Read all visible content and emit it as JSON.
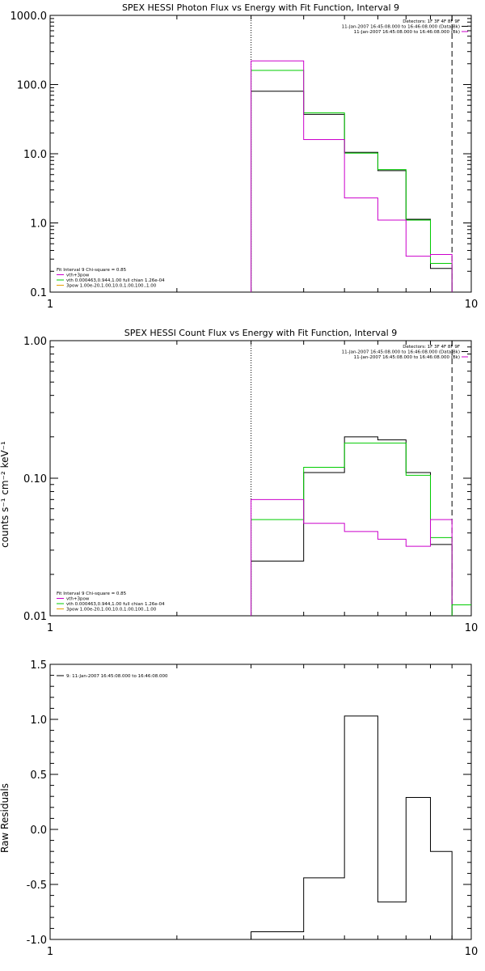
{
  "chart_data": [
    {
      "type": "line",
      "subtype": "histogram-step",
      "title": "SPEX HESSI Photon Flux vs Energy with Fit Function, Interval 9",
      "xlabel": "",
      "ylabel": "",
      "xscale": "log",
      "yscale": "log",
      "xlim": [
        1,
        10
      ],
      "ylim": [
        0.1,
        1000
      ],
      "xticks": [
        "1",
        "10"
      ],
      "yticks": [
        "1000.0",
        "100.0",
        "10.0",
        "1.0",
        "0.1"
      ],
      "ytick_values": [
        1000,
        100,
        10,
        1,
        0.1
      ],
      "vlines": [
        {
          "x": 3.0,
          "style": "dotted"
        },
        {
          "x": 9.0,
          "style": "dashed"
        }
      ],
      "bin_edges": [
        3.0,
        4.0,
        5.0,
        6.0,
        7.0,
        8.0,
        9.0
      ],
      "series": [
        {
          "color": "#000000",
          "values": [
            80,
            37,
            10.5,
            5.7,
            1.13,
            0.22
          ]
        },
        {
          "color": "#00cc00",
          "values": [
            160,
            39,
            10.2,
            5.9,
            1.1,
            0.26
          ]
        },
        {
          "color": "#cc00cc",
          "values": [
            220,
            16,
            2.3,
            1.1,
            0.33,
            0.35
          ]
        }
      ],
      "legend_right": {
        "header": "Detectors: 1F 3F 4F 8F 9F",
        "entries": [
          {
            "text": "11-Jan-2007 16:45:08.000 to 16:46:08.000 (Data-Bk)",
            "color": "#000000"
          },
          {
            "text": "11-Jan-2007 16:45:08.000 to 16:46:08.000 (Bk)",
            "color": "#cc00cc"
          }
        ]
      },
      "legend_left": {
        "header": "Fit Interval 9   Chi-square = 0.85",
        "entries": [
          {
            "text": "vth+3pow",
            "color": "#cc00cc"
          },
          {
            "text": "vth 0.000463,0.944,1.00  full chian 1.26e-04",
            "color": "#00cc00"
          },
          {
            "text": "3pow 1.00e-20,1.00,10.0,1.00,100.,1.00",
            "color": "#e8a000"
          }
        ]
      }
    },
    {
      "type": "line",
      "subtype": "histogram-step",
      "title": "SPEX HESSI Count Flux vs Energy with Fit Function, Interval 9",
      "xlabel": "",
      "ylabel": "counts s⁻¹ cm⁻² keV⁻¹",
      "xscale": "log",
      "yscale": "log",
      "xlim": [
        1,
        10
      ],
      "ylim": [
        0.01,
        1.0
      ],
      "xticks": [
        "1",
        "10"
      ],
      "yticks": [
        "1.00",
        "0.10",
        "0.01"
      ],
      "ytick_values": [
        1.0,
        0.1,
        0.01
      ],
      "vlines": [
        {
          "x": 3.0,
          "style": "dotted"
        },
        {
          "x": 9.0,
          "style": "dashed"
        }
      ],
      "bin_edges": [
        3.0,
        4.0,
        5.0,
        6.0,
        7.0,
        8.0,
        9.0
      ],
      "extra_bin": {
        "edges": [
          9.0,
          10.0
        ],
        "value": 0.012,
        "color": "#00cc00"
      },
      "series": [
        {
          "color": "#000000",
          "values": [
            0.025,
            0.11,
            0.2,
            0.19,
            0.11,
            0.033
          ]
        },
        {
          "color": "#00cc00",
          "values": [
            0.05,
            0.12,
            0.18,
            0.18,
            0.105,
            0.037
          ]
        },
        {
          "color": "#cc00cc",
          "values": [
            0.07,
            0.047,
            0.041,
            0.036,
            0.032,
            0.05
          ]
        }
      ],
      "legend_right": {
        "header": "Detectors: 1F 3F 4F 8F 9F",
        "entries": [
          {
            "text": "11-Jan-2007 16:45:08.000 to 16:46:08.000 (Data-Bk)",
            "color": "#000000"
          },
          {
            "text": "11-Jan-2007 16:45:08.000 to 16:46:08.000 (Bk)",
            "color": "#cc00cc"
          }
        ]
      },
      "legend_left": {
        "header": "Fit Interval 9   Chi-square = 0.85",
        "entries": [
          {
            "text": "vth+3pow",
            "color": "#cc00cc"
          },
          {
            "text": "vth 0.000463,0.944,1.00  full chian 1.26e-04",
            "color": "#00cc00"
          },
          {
            "text": "3pow 1.00e-20,1.00,10.0,1.00,100.,1.00",
            "color": "#e8a000"
          }
        ]
      }
    },
    {
      "type": "line",
      "subtype": "histogram-step",
      "title": "",
      "xlabel": "",
      "ylabel": "Raw Residuals",
      "xscale": "log",
      "yscale": "linear",
      "xlim": [
        1,
        10
      ],
      "ylim": [
        -1.0,
        1.5
      ],
      "xticks": [
        "1",
        "10"
      ],
      "yticks": [
        "1.5",
        "1.0",
        "0.5",
        "0.0",
        "-0.5",
        "-1.0"
      ],
      "ytick_values": [
        1.5,
        1.0,
        0.5,
        0.0,
        -0.5,
        -1.0
      ],
      "vlines": [],
      "bin_edges": [
        3.0,
        4.0,
        5.0,
        6.0,
        7.0,
        8.0,
        9.0
      ],
      "series": [
        {
          "color": "#000000",
          "values": [
            -0.93,
            -0.44,
            1.03,
            -0.66,
            0.29,
            -0.2
          ]
        }
      ],
      "legend_left": {
        "header": "",
        "entries": [
          {
            "text": "9: 11-Jan-2007 16:45:08.000 to 16:46:08.000",
            "color": "#000000"
          }
        ]
      }
    }
  ]
}
